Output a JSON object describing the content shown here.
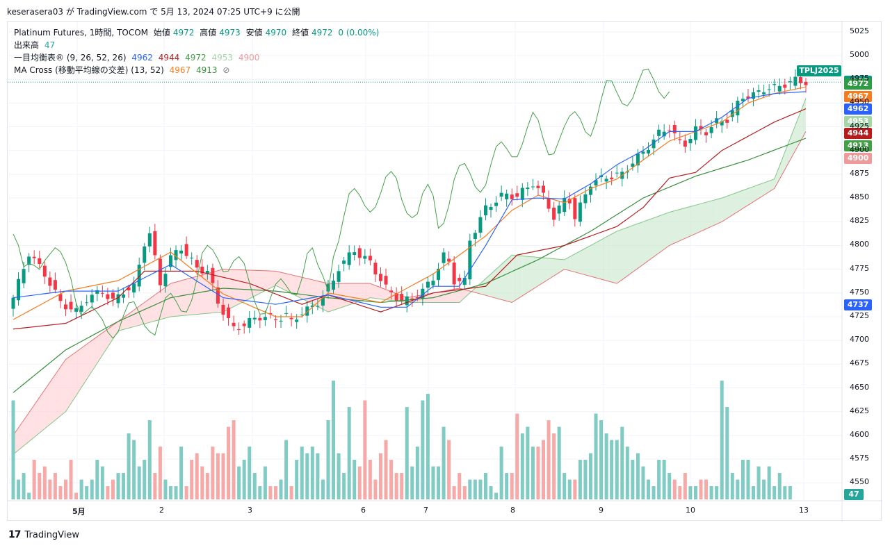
{
  "header": {
    "publish_line": "keserasera03 が TradingView.com で 5月 13, 2024 07:25 UTC+9 に公開"
  },
  "legend": {
    "line1": {
      "title": "Platinum Futures, 1時間, TOCOM",
      "open_label": "始値",
      "open": "4972",
      "high_label": "高値",
      "high": "4973",
      "low_label": "安値",
      "low": "4970",
      "close_label": "終値",
      "close": "4972",
      "change": "0 (0.00%)"
    },
    "line2": {
      "title": "出来高",
      "value": "47"
    },
    "line3": {
      "title": "一目均衡表® (9, 26, 52, 26)",
      "v1": "4962",
      "v2": "4944",
      "v3": "4972",
      "v4": "4953",
      "v5": "4900"
    },
    "line4": {
      "title": "MA Cross (移動平均線の交差) (13, 52)",
      "v1": "4967",
      "v2": "4913",
      "icon": "⊘"
    }
  },
  "price_tags": [
    {
      "text": "4972",
      "color": "#089981",
      "price": 4972
    },
    {
      "text": "4972",
      "color": "#2e9b45",
      "price": 4969
    },
    {
      "text": "4967",
      "color": "#f57c1f",
      "price": 4956
    },
    {
      "text": "4962",
      "color": "#2962ff",
      "price": 4943
    },
    {
      "text": "4953",
      "color": "#a5d6a7",
      "price": 4930
    },
    {
      "text": "4944",
      "color": "#b71c1c",
      "price": 4917
    },
    {
      "text": "4913",
      "color": "#43a047",
      "price": 4904
    },
    {
      "text": "4900",
      "color": "#ef9a9a",
      "price": 4891
    },
    {
      "text": "4737",
      "color": "#2962ff",
      "price": 4737
    }
  ],
  "symbol_tag": {
    "text": "TPLJ2025",
    "color": "#089981"
  },
  "volume_tag": {
    "text": "47",
    "color": "#26a69a"
  },
  "colors": {
    "up": "#089981",
    "down": "#f23645",
    "tenkan": "#2962ff",
    "kijun": "#b71c1c",
    "chikou": "#43a047",
    "ma_fast": "#f57c1f",
    "ma_slow": "#388e3c",
    "cloud_up": "#c8e6c9",
    "cloud_down": "#ffcdd2"
  },
  "chart_data": {
    "type": "candlestick",
    "y_axis_ticks": [
      "5025",
      "5000",
      "4975",
      "4950",
      "4925",
      "4900",
      "4875",
      "4850",
      "4825",
      "4800",
      "4775",
      "4750",
      "4725",
      "4700",
      "4675",
      "4650",
      "4625",
      "4600",
      "4575",
      "4550"
    ],
    "ylim": [
      4537,
      5030
    ],
    "x_axis_ticks": [
      "5月",
      "2",
      "3",
      "6",
      "7",
      "8",
      "9",
      "10",
      "13"
    ],
    "last_price": 4972,
    "close_path": [
      [
        0,
        4745
      ],
      [
        3,
        4792
      ],
      [
        6,
        4770
      ],
      [
        9,
        4740
      ],
      [
        12,
        4730
      ],
      [
        14,
        4744
      ],
      [
        17,
        4752
      ],
      [
        19,
        4741
      ],
      [
        21,
        4752
      ],
      [
        23,
        4756
      ],
      [
        25,
        4803
      ],
      [
        26,
        4812
      ],
      [
        28,
        4760
      ],
      [
        30,
        4787
      ],
      [
        32,
        4798
      ],
      [
        35,
        4776
      ],
      [
        37,
        4773
      ],
      [
        39,
        4740
      ],
      [
        42,
        4712
      ],
      [
        45,
        4720
      ],
      [
        47,
        4725
      ],
      [
        48,
        4725
      ],
      [
        50,
        4722
      ],
      [
        52,
        4727
      ],
      [
        53,
        4719
      ],
      [
        55,
        4730
      ],
      [
        57,
        4735
      ],
      [
        58,
        4740
      ],
      [
        61,
        4763
      ],
      [
        62,
        4777
      ],
      [
        65,
        4795
      ],
      [
        66,
        4790
      ],
      [
        68,
        4782
      ],
      [
        71,
        4755
      ],
      [
        74,
        4741
      ],
      [
        76,
        4744
      ],
      [
        78,
        4752
      ],
      [
        80,
        4766
      ],
      [
        82,
        4789
      ],
      [
        83,
        4782
      ],
      [
        84,
        4763
      ],
      [
        86,
        4762
      ],
      [
        87,
        4806
      ],
      [
        90,
        4839
      ],
      [
        93,
        4852
      ],
      [
        94,
        4853
      ],
      [
        96,
        4852
      ],
      [
        99,
        4866
      ],
      [
        101,
        4852
      ],
      [
        103,
        4830
      ],
      [
        105,
        4848
      ],
      [
        106,
        4848
      ],
      [
        107,
        4829
      ],
      [
        110,
        4866
      ],
      [
        113,
        4872
      ],
      [
        116,
        4875
      ],
      [
        118,
        4888
      ],
      [
        120,
        4898
      ],
      [
        123,
        4918
      ],
      [
        125,
        4924
      ],
      [
        127,
        4908
      ],
      [
        128,
        4907
      ],
      [
        130,
        4922
      ],
      [
        132,
        4920
      ],
      [
        134,
        4930
      ],
      [
        136,
        4933
      ],
      [
        139,
        4957
      ],
      [
        141,
        4958
      ],
      [
        143,
        4965
      ],
      [
        145,
        4966
      ],
      [
        147,
        4970
      ],
      [
        149,
        4974
      ],
      [
        151,
        4972
      ]
    ],
    "volume": [
      150,
      30,
      40,
      10,
      60,
      40,
      50,
      30,
      40,
      20,
      30,
      60,
      10,
      30,
      20,
      30,
      60,
      50,
      20,
      30,
      40,
      40,
      100,
      90,
      50,
      60,
      120,
      40,
      80,
      30,
      20,
      20,
      80,
      20,
      60,
      70,
      50,
      40,
      80,
      70,
      70,
      110,
      120,
      50,
      60,
      80,
      40,
      20,
      50,
      20,
      20,
      30,
      90,
      20,
      60,
      80,
      70,
      80,
      70,
      30,
      120,
      180,
      70,
      40,
      140,
      60,
      50,
      150,
      60,
      30,
      70,
      90,
      60,
      40,
      40,
      140,
      50,
      80,
      150,
      160,
      50,
      50,
      110,
      90,
      20,
      40,
      20,
      30,
      30,
      30,
      40,
      20,
      10,
      80,
      40,
      40,
      130,
      100,
      110,
      80,
      80,
      90,
      120,
      100,
      110,
      40,
      30,
      30,
      60,
      60,
      70,
      130,
      120,
      100,
      90,
      90,
      110,
      80,
      60,
      70,
      50,
      30,
      20,
      60,
      60,
      40,
      30,
      20,
      40,
      20,
      20,
      30,
      30,
      20,
      20,
      180,
      140,
      40,
      30,
      60,
      60,
      20,
      50,
      30,
      50,
      20,
      40,
      20,
      20
    ],
    "ichimoku": {
      "tenkan": [
        [
          0,
          4745
        ],
        [
          10,
          4752
        ],
        [
          20,
          4752
        ],
        [
          30,
          4780
        ],
        [
          40,
          4745
        ],
        [
          50,
          4738
        ],
        [
          60,
          4748
        ],
        [
          70,
          4735
        ],
        [
          75,
          4735
        ],
        [
          80,
          4757
        ],
        [
          85,
          4757
        ],
        [
          90,
          4800
        ],
        [
          95,
          4848
        ],
        [
          100,
          4850
        ],
        [
          105,
          4849
        ],
        [
          110,
          4865
        ],
        [
          115,
          4885
        ],
        [
          120,
          4900
        ],
        [
          125,
          4920
        ],
        [
          130,
          4920
        ],
        [
          135,
          4935
        ],
        [
          140,
          4955
        ],
        [
          145,
          4960
        ],
        [
          151,
          4962
        ]
      ],
      "kijun": [
        [
          0,
          4712
        ],
        [
          10,
          4718
        ],
        [
          20,
          4745
        ],
        [
          25,
          4773
        ],
        [
          35,
          4773
        ],
        [
          45,
          4760
        ],
        [
          55,
          4738
        ],
        [
          60,
          4748
        ],
        [
          70,
          4730
        ],
        [
          80,
          4750
        ],
        [
          90,
          4757
        ],
        [
          96,
          4790
        ],
        [
          105,
          4800
        ],
        [
          115,
          4820
        ],
        [
          120,
          4840
        ],
        [
          125,
          4871
        ],
        [
          130,
          4877
        ],
        [
          135,
          4900
        ],
        [
          140,
          4915
        ],
        [
          145,
          4930
        ],
        [
          151,
          4944
        ]
      ],
      "cloud": [
        [
          0,
          4580,
          4600
        ],
        [
          10,
          4625,
          4680
        ],
        [
          20,
          4710,
          4720
        ],
        [
          30,
          4725,
          4760
        ],
        [
          40,
          4730,
          4775
        ],
        [
          50,
          4758,
          4773
        ],
        [
          60,
          4730,
          4760
        ],
        [
          68,
          4745,
          4760
        ],
        [
          75,
          4740,
          4745
        ],
        [
          85,
          4740,
          4755
        ],
        [
          95,
          4790,
          4740
        ],
        [
          105,
          4785,
          4775
        ],
        [
          115,
          4815,
          4760
        ],
        [
          125,
          4835,
          4800
        ],
        [
          135,
          4850,
          4825
        ],
        [
          145,
          4870,
          4860
        ],
        [
          151,
          4955,
          4920
        ]
      ]
    },
    "ma": {
      "fast": [
        [
          0,
          4722
        ],
        [
          10,
          4752
        ],
        [
          20,
          4763
        ],
        [
          30,
          4793
        ],
        [
          40,
          4749
        ],
        [
          50,
          4725
        ],
        [
          55,
          4725
        ],
        [
          60,
          4750
        ],
        [
          70,
          4740
        ],
        [
          80,
          4770
        ],
        [
          90,
          4810
        ],
        [
          95,
          4837
        ],
        [
          100,
          4853
        ],
        [
          105,
          4845
        ],
        [
          110,
          4860
        ],
        [
          115,
          4870
        ],
        [
          120,
          4890
        ],
        [
          125,
          4910
        ],
        [
          130,
          4920
        ],
        [
          135,
          4930
        ],
        [
          140,
          4950
        ],
        [
          145,
          4960
        ],
        [
          151,
          4967
        ]
      ],
      "slow": [
        [
          0,
          4645
        ],
        [
          10,
          4690
        ],
        [
          20,
          4720
        ],
        [
          30,
          4745
        ],
        [
          40,
          4755
        ],
        [
          50,
          4752
        ],
        [
          60,
          4745
        ],
        [
          70,
          4740
        ],
        [
          80,
          4745
        ],
        [
          90,
          4760
        ],
        [
          100,
          4785
        ],
        [
          110,
          4815
        ],
        [
          120,
          4850
        ],
        [
          130,
          4873
        ],
        [
          140,
          4890
        ],
        [
          151,
          4913
        ]
      ]
    }
  }
}
